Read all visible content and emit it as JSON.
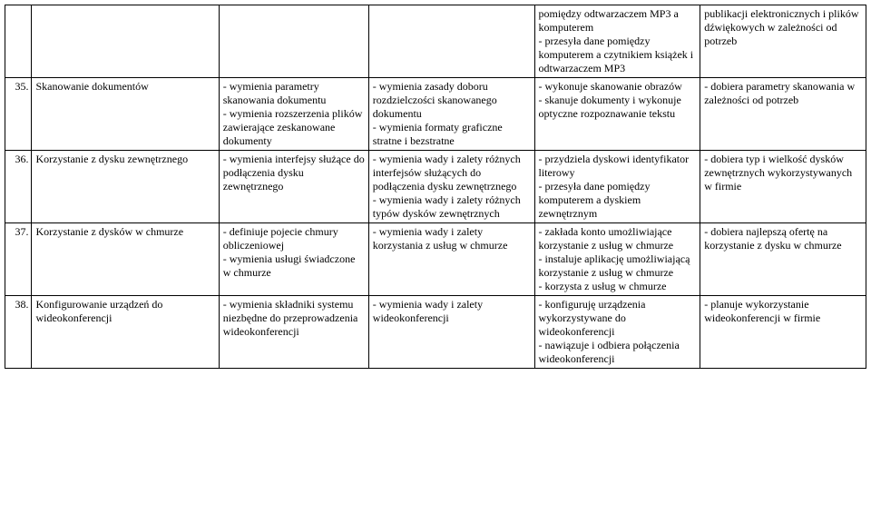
{
  "rows": [
    {
      "num": "",
      "topic": "",
      "c3": "",
      "c4": "",
      "c5": "pomiędzy odtwarzaczem MP3 a komputerem\n- przesyła dane pomiędzy komputerem a czytnikiem książek i odtwarzaczem MP3",
      "c6": "publikacji elektronicznych i plików dźwiękowych w zależności od potrzeb"
    },
    {
      "num": "35.",
      "topic": "Skanowanie dokumentów",
      "c3": "- wymienia parametry skanowania dokumentu\n- wymienia rozszerzenia plików zawierające zeskanowane dokumenty",
      "c4": "- wymienia zasady doboru rozdzielczości skanowanego dokumentu\n- wymienia formaty graficzne stratne i bezstratne",
      "c5": "- wykonuje skanowanie obrazów\n- skanuje dokumenty i wykonuje optyczne rozpoznawanie tekstu",
      "c6": "- dobiera parametry skanowania w zależności od potrzeb"
    },
    {
      "num": "36.",
      "topic": "Korzystanie z dysku zewnętrznego",
      "c3": "- wymienia interfejsy służące do podłączenia dysku zewnętrznego",
      "c4": "- wymienia wady i zalety różnych interfejsów służących do podłączenia dysku zewnętrznego\n- wymienia wady i zalety różnych typów dysków zewnętrznych",
      "c5": "- przydziela dyskowi identyfikator literowy\n- przesyła dane pomiędzy komputerem a dyskiem zewnętrznym",
      "c6": "- dobiera typ i wielkość dysków zewnętrznych wykorzystywanych w firmie"
    },
    {
      "num": "37.",
      "topic": "Korzystanie z dysków w chmurze",
      "c3": "- definiuje pojecie chmury obliczeniowej\n- wymienia usługi świadczone w chmurze",
      "c4": "- wymienia wady i zalety korzystania z usług w chmurze",
      "c5": "- zakłada konto umożliwiające korzystanie z usług w chmurze\n- instaluje aplikację umożliwiającą korzystanie z usług w chmurze\n- korzysta z usług w chmurze",
      "c6": "- dobiera najlepszą ofertę na korzystanie z dysku w chmurze"
    },
    {
      "num": "38.",
      "topic": "Konfigurowanie urządzeń do wideokonferencji",
      "c3": "- wymienia składniki systemu niezbędne do przeprowadzenia wideokonferencji",
      "c4": "- wymienia wady i zalety wideokonferencji",
      "c5": "- konfiguruję urządzenia wykorzystywane do wideokonferencji\n- nawiązuje i odbiera połączenia wideokonferencji",
      "c6": "- planuje wykorzystanie wideokonferencji w firmie"
    }
  ]
}
